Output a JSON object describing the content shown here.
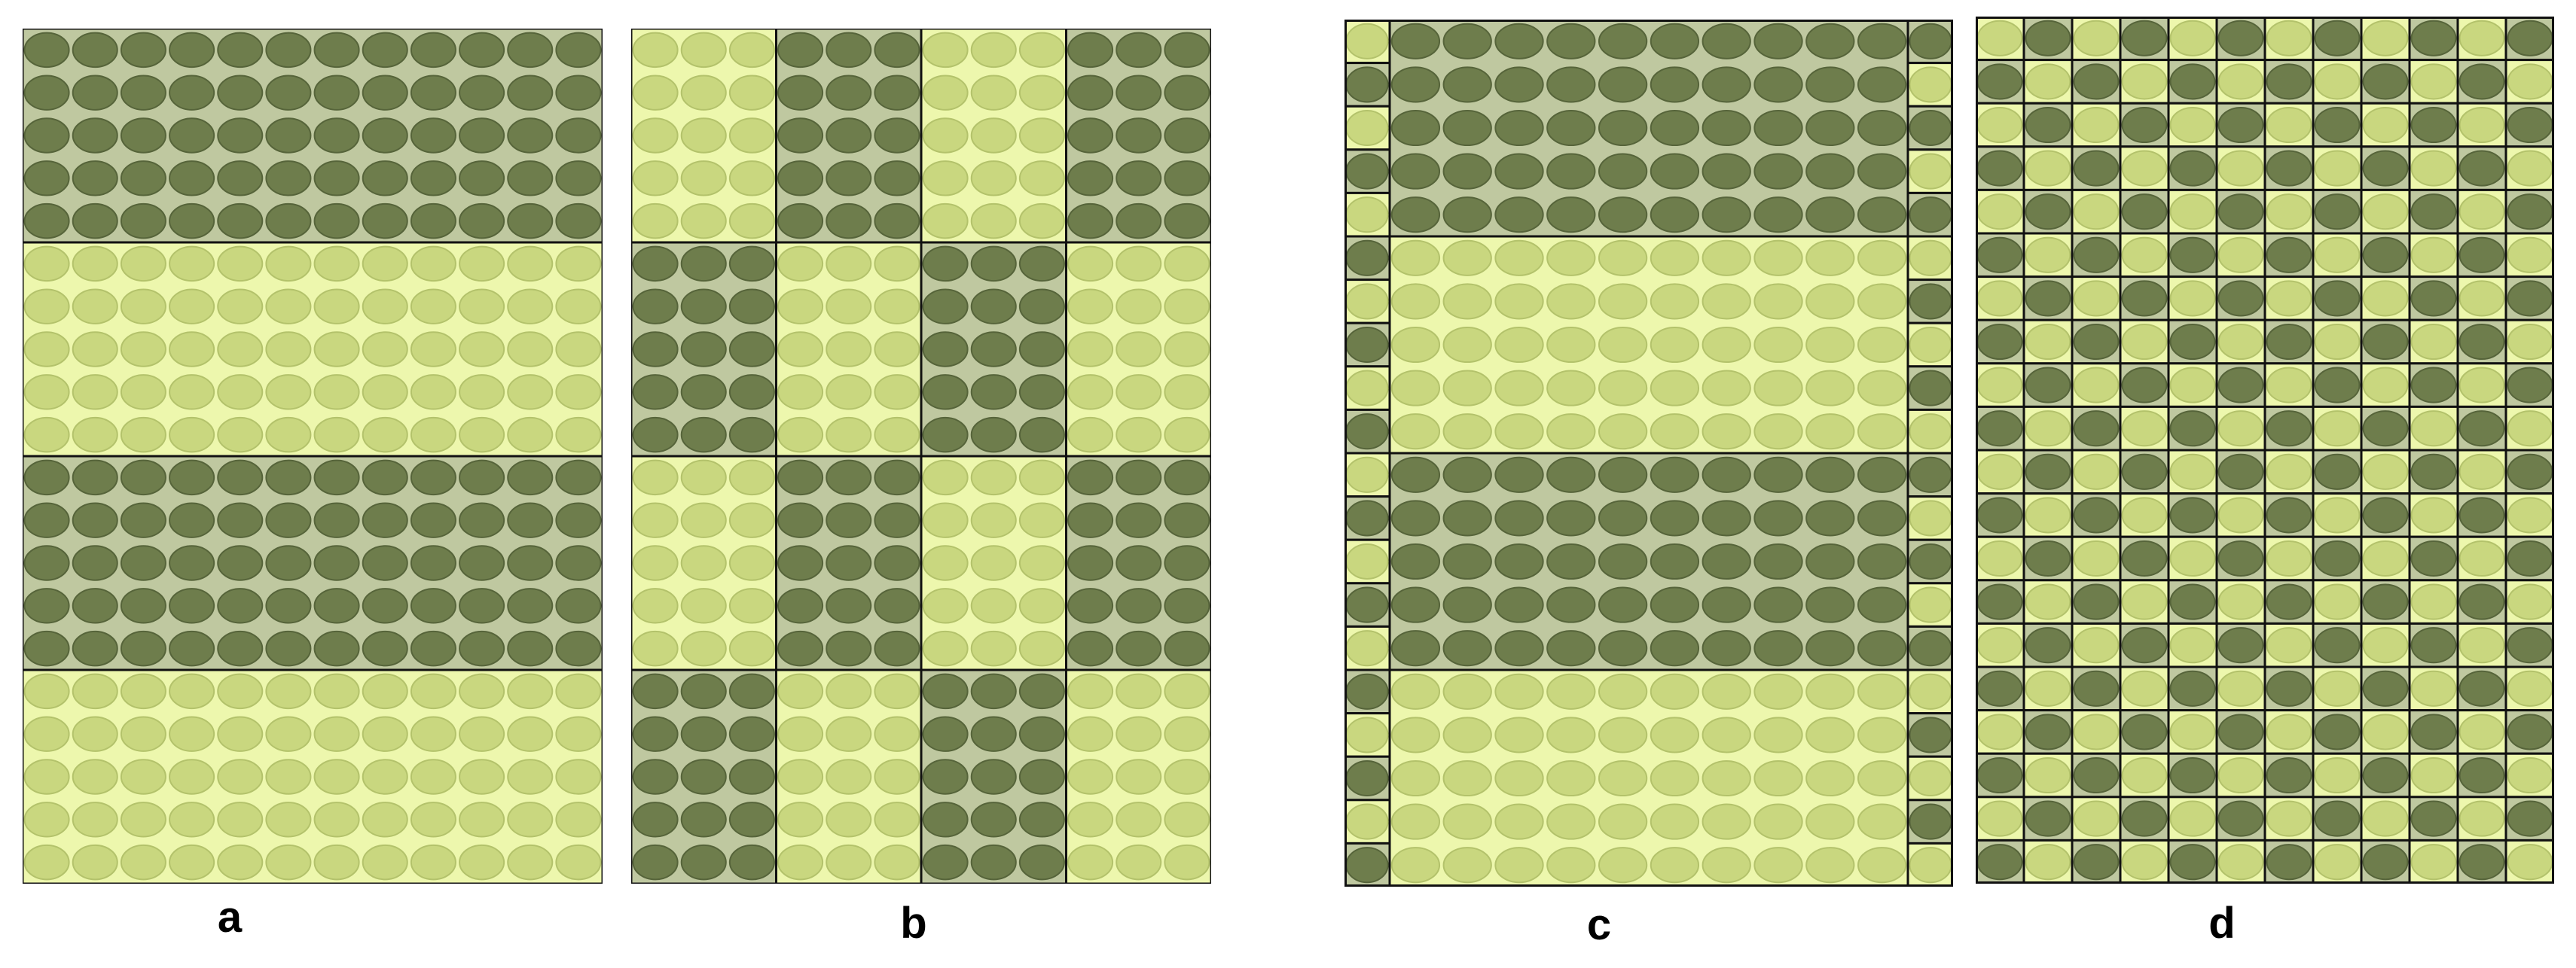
{
  "colors": {
    "dark_background": "#bfc8a0",
    "dark_ellipse": "#6e7d4c",
    "dark_ellipse_edge": "#56643a",
    "light_background": "#edf7ad",
    "light_ellipse": "#c9d77f",
    "light_ellipse_edge": "#b3c26b",
    "border": "#111111"
  },
  "panels": [
    {
      "id": "a",
      "label": "a",
      "arrangement": "horizontal-stripes",
      "rows_of_blocks": 4,
      "cols_of_blocks": 1,
      "block_pattern": [
        "dark",
        "light",
        "dark",
        "light"
      ],
      "ellipses_per_block": {
        "cols": 12,
        "rows": 5
      },
      "edge_column_squares": false
    },
    {
      "id": "b",
      "label": "b",
      "arrangement": "checkerboard-blocks",
      "rows_of_blocks": 4,
      "cols_of_blocks": 4,
      "block_pattern": [
        [
          "light",
          "dark",
          "light",
          "dark"
        ],
        [
          "dark",
          "light",
          "dark",
          "light"
        ],
        [
          "light",
          "dark",
          "light",
          "dark"
        ],
        [
          "dark",
          "light",
          "dark",
          "light"
        ]
      ],
      "ellipses_per_block": {
        "cols": 3,
        "rows": 5
      },
      "edge_column_squares": false
    },
    {
      "id": "c",
      "label": "c",
      "arrangement": "horizontal-stripes-with-edge-cells",
      "rows_of_blocks": 4,
      "cols_of_blocks": 1,
      "block_pattern": [
        "dark",
        "light",
        "dark",
        "light"
      ],
      "ellipses_per_block": {
        "cols": 10,
        "rows": 5
      },
      "edge_column_squares": true,
      "edge_cells": 20
    },
    {
      "id": "d",
      "label": "d",
      "arrangement": "fine-checkerboard",
      "rows_of_blocks": 20,
      "cols_of_blocks": 12,
      "block_pattern": "alternating",
      "ellipses_per_block": {
        "cols": 1,
        "rows": 1
      },
      "edge_column_squares": false
    }
  ]
}
